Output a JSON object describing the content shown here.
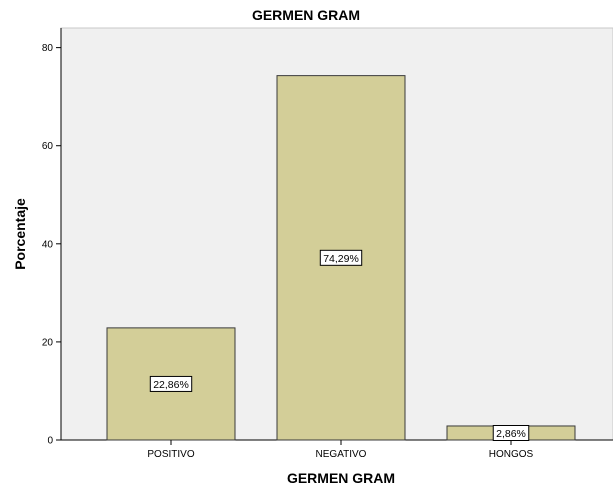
{
  "chart_data": {
    "type": "bar",
    "title": "GERMEN GRAM",
    "xlabel": "GERMEN GRAM",
    "ylabel": "Porcentaje",
    "categories": [
      "POSITIVO",
      "NEGATIVO",
      "HONGOS"
    ],
    "values": [
      22.86,
      74.29,
      2.86
    ],
    "data_labels": [
      "22,86%",
      "74,29%",
      "2,86%"
    ],
    "ylim": [
      0,
      84
    ],
    "yticks": [
      0,
      20,
      40,
      60,
      80
    ],
    "ytick_labels": [
      "0",
      "20",
      "40",
      "60",
      "80"
    ],
    "grid": false,
    "legend": "none",
    "colors": {
      "bar_fill": "#D3CE98",
      "bar_stroke": "#3a3a3a",
      "plot_background": "#F0F0F0",
      "label_box_fill": "#ffffff",
      "label_box_stroke": "#000000"
    }
  }
}
